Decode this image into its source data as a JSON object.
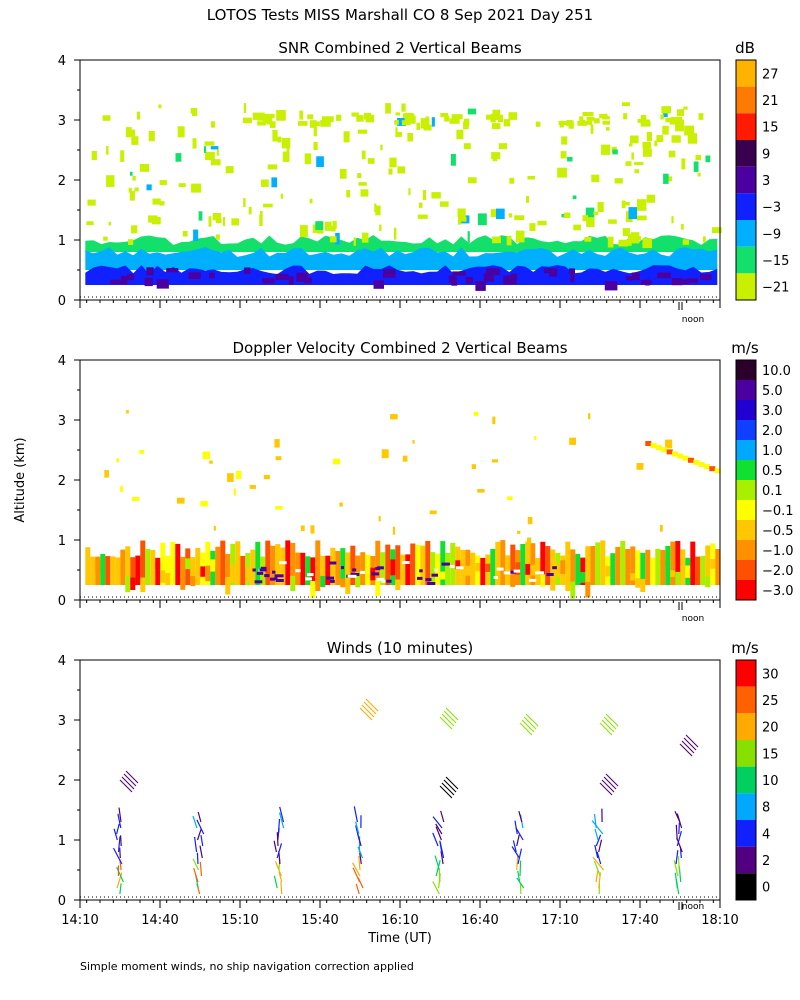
{
  "page": {
    "title": "LOTOS Tests MISS Marshall CO   8 Sep 2021 Day 251",
    "y_axis_label": "Altitude (km)",
    "x_axis_label": "Time (UT)",
    "footnote": "Simple moment winds, no ship navigation correction applied",
    "noon_label": "noon"
  },
  "chart_data": [
    {
      "type": "heatmap",
      "title": "SNR Combined 2 Vertical Beams",
      "ylim": [
        0,
        4
      ],
      "yticks": [
        "0",
        "1",
        "2",
        "3",
        "4"
      ],
      "x_range_minutes_utc": [
        "14:10",
        "18:10"
      ],
      "grid": false,
      "colorbar": {
        "unit": "dB",
        "labels": [
          "27",
          "21",
          "15",
          "9",
          "3",
          "−3",
          "−9",
          "−15",
          "−21"
        ],
        "colors": [
          "#ffb300",
          "#ff7a00",
          "#ff1a00",
          "#3a0050",
          "#4b00a0",
          "#1020ff",
          "#00b0ff",
          "#12e06a",
          "#c8f000"
        ]
      },
      "layers": [
        {
          "from_km": 0.25,
          "to_km": 0.5,
          "color": "#1020ff",
          "label": "-3"
        },
        {
          "from_km": 0.5,
          "to_km": 0.8,
          "color": "#00b0ff",
          "label": "-9"
        },
        {
          "from_km": 0.8,
          "to_km": 1.0,
          "color": "#12e06a",
          "label": "-15"
        },
        {
          "from_km": 1.0,
          "to_km": 3.3,
          "color": "#c8f000",
          "label": "-21 (sparse)"
        }
      ]
    },
    {
      "type": "heatmap",
      "title": "Doppler Velocity Combined 2 Vertical Beams",
      "ylim": [
        0,
        4
      ],
      "yticks": [
        "0",
        "1",
        "2",
        "3",
        "4"
      ],
      "grid": false,
      "colorbar": {
        "unit": "m/s",
        "labels": [
          "10.0",
          "5.0",
          "3.0",
          "2.0",
          "1.0",
          "0.5",
          "0.1",
          "−0.1",
          "−0.5",
          "−1.0",
          "−2.0",
          "−3.0"
        ],
        "colors": [
          "#2a002a",
          "#4b00a0",
          "#2000d0",
          "#1040ff",
          "#00a8ff",
          "#10e030",
          "#a8f000",
          "#ffff00",
          "#ffc800",
          "#ff9000",
          "#ff5000",
          "#ff0000"
        ]
      },
      "layers": [
        {
          "from_km": 0.25,
          "to_km": 0.95,
          "color": "#ffc800",
          "label": "-0.5 (dominant)"
        },
        {
          "from_km": 1.0,
          "to_km": 3.2,
          "color": "#ffff00",
          "label": "-0.1 (sparse)"
        }
      ]
    },
    {
      "type": "scatter",
      "title": "Winds (10 minutes)",
      "ylim": [
        0,
        4
      ],
      "yticks": [
        "0",
        "1",
        "2",
        "3",
        "4"
      ],
      "xlabel": "Time (UT)",
      "xticks": [
        "14:10",
        "14:40",
        "15:10",
        "15:40",
        "16:10",
        "16:40",
        "17:10",
        "17:40",
        "18:10"
      ],
      "grid": false,
      "colorbar": {
        "unit": "m/s",
        "labels": [
          "30",
          "25",
          "20",
          "15",
          "10",
          "8",
          "4",
          "2",
          "0"
        ],
        "colors": [
          "#ff0000",
          "#ff6000",
          "#ffaa00",
          "#88e000",
          "#00d060",
          "#00a8ff",
          "#1020ff",
          "#500080",
          "#000000"
        ]
      },
      "profiles_utc": [
        "14:25",
        "14:55",
        "15:25",
        "15:55",
        "16:25",
        "16:55",
        "17:25",
        "17:55"
      ]
    }
  ]
}
